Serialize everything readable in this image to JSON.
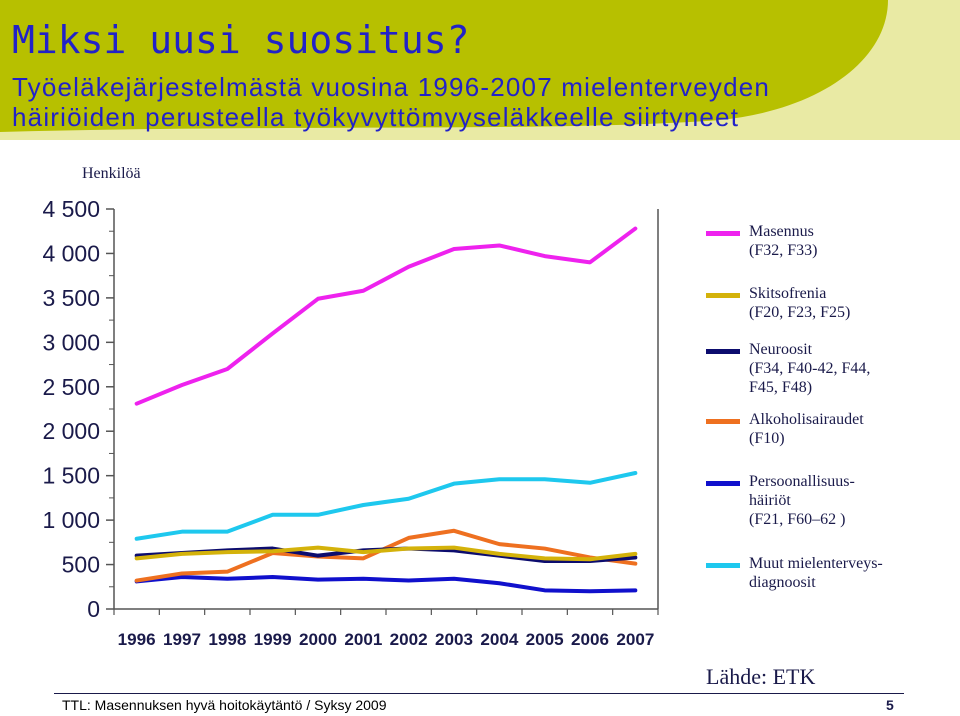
{
  "slide": {
    "title": "Miksi uusi suositus?",
    "subtitle_line1": "Työeläkejärjestelmästä vuosina 1996-2007 mielenterveyden",
    "subtitle_line2": "häiriöiden perusteella työkyvyttömyyseläkkeelle siirtyneet",
    "source": "Lähde: ETK",
    "footer": "TTL: Masennuksen hyvä hoitokäytäntö / Syksy 2009",
    "page_number": "5",
    "colors": {
      "banner_green": "#b7c000",
      "banner_light": "#e9eaa4",
      "title_blue": "#2222c8"
    }
  },
  "chart_data": {
    "type": "line",
    "ylabel": "Henkilöä",
    "xlabel": "",
    "ylim": [
      0,
      4500
    ],
    "yticks": [
      0,
      500,
      1000,
      1500,
      2000,
      2500,
      3000,
      3500,
      4000,
      4500
    ],
    "ytick_labels": [
      "0",
      "500",
      "1 000",
      "1 500",
      "2 000",
      "2 500",
      "3 000",
      "3 500",
      "4 000",
      "4 500"
    ],
    "categories": [
      "1996",
      "1997",
      "1998",
      "1999",
      "2000",
      "2001",
      "2002",
      "2003",
      "2004",
      "2005",
      "2006",
      "2007"
    ],
    "grid": false,
    "legend_position": "right",
    "series": [
      {
        "name": "Masennus\n(F32, F33)",
        "color": "#ee22ee",
        "values": [
          2310,
          2520,
          2700,
          3100,
          3490,
          3580,
          3850,
          4050,
          4090,
          3970,
          3900,
          4280
        ]
      },
      {
        "name": "Skitsofrenia\n(F20, F23, F25)",
        "color": "#d4b20a",
        "values": [
          570,
          620,
          640,
          650,
          690,
          640,
          680,
          690,
          620,
          570,
          560,
          620
        ]
      },
      {
        "name": "Neuroosit\n(F34, F40-42, F44,\n  F45, F48)",
        "color": "#0c0c6e",
        "values": [
          600,
          630,
          660,
          680,
          600,
          660,
          680,
          660,
          600,
          540,
          540,
          580
        ]
      },
      {
        "name": "Alkoholisairaudet\n(F10)",
        "color": "#ee7020",
        "values": [
          320,
          400,
          420,
          630,
          590,
          570,
          800,
          880,
          730,
          680,
          580,
          510
        ]
      },
      {
        "name": "Persoonallisuus-\nhäiriöt\n(F21, F60–62 )",
        "color": "#1010cc",
        "values": [
          310,
          360,
          340,
          360,
          330,
          340,
          320,
          340,
          290,
          210,
          200,
          210
        ]
      },
      {
        "name": "Muut mielenterveys-\ndiagnoosit",
        "color": "#1ec8ee",
        "values": [
          790,
          870,
          870,
          1060,
          1060,
          1170,
          1240,
          1410,
          1460,
          1460,
          1420,
          1530
        ]
      }
    ]
  }
}
